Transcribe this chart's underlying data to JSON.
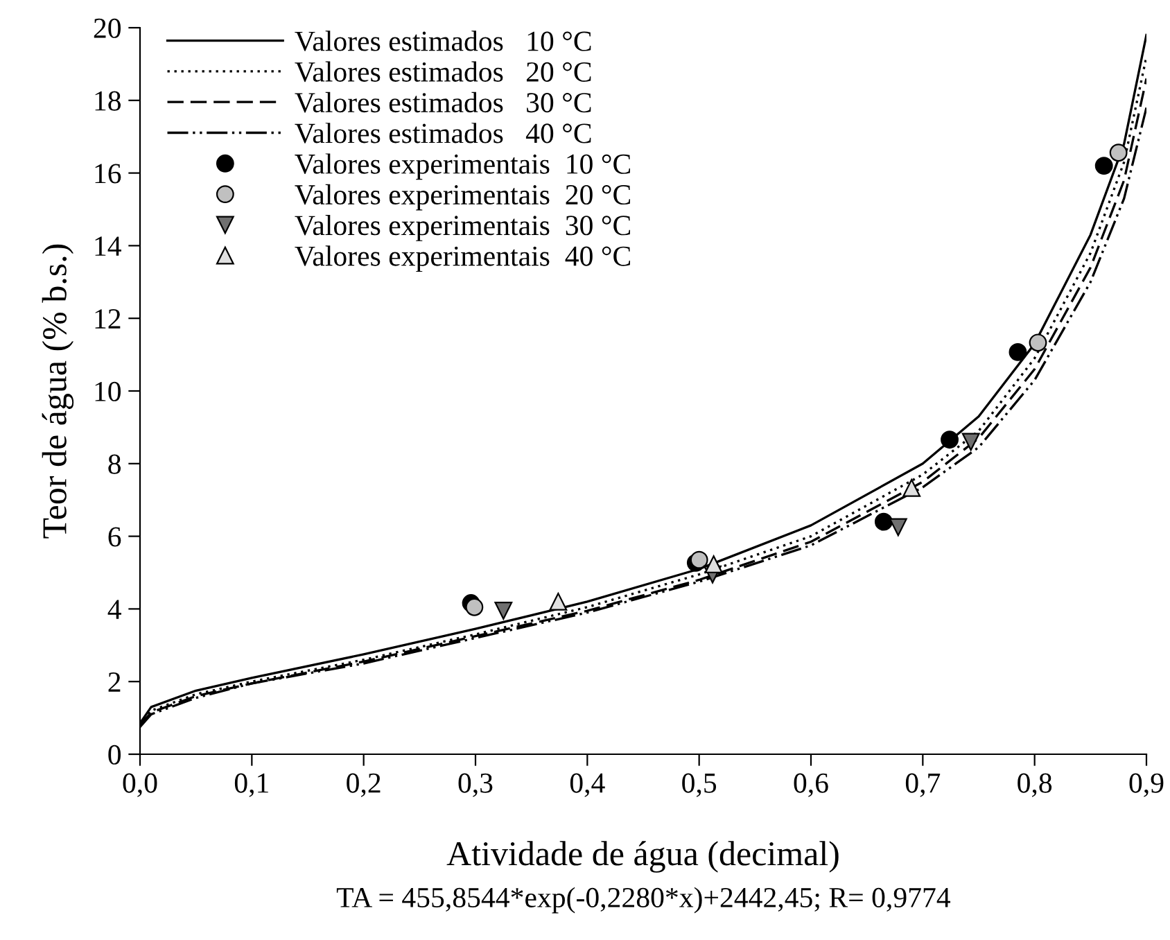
{
  "chart_data": {
    "type": "line",
    "xlabel": "Atividade de água (decimal)",
    "ylabel": "Teor de água (% b.s.)",
    "annotations": [
      "TA = 455,8544*exp(-0,2280*x)+2442,45; R= 0,9774"
    ],
    "xlim": [
      0,
      0.9
    ],
    "ylim": [
      0,
      20
    ],
    "xticks": [
      {
        "value": 0,
        "label": "0,0"
      },
      {
        "value": 0.1,
        "label": "0,1"
      },
      {
        "value": 0.2,
        "label": "0,2"
      },
      {
        "value": 0.3,
        "label": "0,3"
      },
      {
        "value": 0.4,
        "label": "0,4"
      },
      {
        "value": 0.5,
        "label": "0,5"
      },
      {
        "value": 0.6,
        "label": "0,6"
      },
      {
        "value": 0.7,
        "label": "0,7"
      },
      {
        "value": 0.8,
        "label": "0,8"
      },
      {
        "value": 0.9,
        "label": "0,9"
      }
    ],
    "yticks": [
      0,
      2,
      4,
      6,
      8,
      10,
      12,
      14,
      16,
      18,
      20
    ],
    "grid": false,
    "legend": "top left",
    "series": [
      {
        "name": "Valores estimados   10 °C",
        "line_style": "solid",
        "marker": "none",
        "color": "#000000",
        "x": [
          0,
          0.01,
          0.05,
          0.1,
          0.2,
          0.3,
          0.4,
          0.5,
          0.6,
          0.7,
          0.75,
          0.8,
          0.85,
          0.88,
          0.9
        ],
        "values": [
          0.85,
          1.3,
          1.75,
          2.1,
          2.75,
          3.45,
          4.2,
          5.1,
          6.3,
          8.0,
          9.3,
          11.3,
          14.3,
          16.8,
          19.8
        ]
      },
      {
        "name": "Valores estimados   20 °C",
        "line_style": "dotted",
        "marker": "none",
        "color": "#000000",
        "x": [
          0,
          0.01,
          0.05,
          0.1,
          0.2,
          0.3,
          0.4,
          0.5,
          0.6,
          0.7,
          0.75,
          0.8,
          0.85,
          0.88,
          0.9
        ],
        "values": [
          0.8,
          1.2,
          1.65,
          2.0,
          2.6,
          3.3,
          4.05,
          4.95,
          6.0,
          7.7,
          8.9,
          10.9,
          13.8,
          16.3,
          19.2
        ]
      },
      {
        "name": "Valores estimados   30 °C",
        "line_style": "dashed",
        "marker": "none",
        "color": "#000000",
        "x": [
          0,
          0.01,
          0.05,
          0.1,
          0.2,
          0.3,
          0.4,
          0.5,
          0.6,
          0.7,
          0.75,
          0.8,
          0.85,
          0.88,
          0.9
        ],
        "values": [
          0.8,
          1.15,
          1.6,
          1.95,
          2.55,
          3.25,
          3.95,
          4.8,
          5.85,
          7.5,
          8.7,
          10.6,
          13.4,
          15.8,
          18.6
        ]
      },
      {
        "name": "Valores estimados   40 °C",
        "line_style": "dashdotdot",
        "marker": "none",
        "color": "#000000",
        "x": [
          0,
          0.01,
          0.05,
          0.1,
          0.2,
          0.3,
          0.4,
          0.5,
          0.6,
          0.7,
          0.75,
          0.8,
          0.85,
          0.88,
          0.9
        ],
        "values": [
          0.75,
          1.1,
          1.55,
          1.95,
          2.5,
          3.2,
          3.9,
          4.75,
          5.75,
          7.35,
          8.45,
          10.3,
          13.0,
          15.3,
          17.8
        ]
      },
      {
        "name": "Valores experimentais  10 °C",
        "type": "scatter",
        "marker": "circle",
        "color": "#000000",
        "x": [
          0.296,
          0.497,
          0.665,
          0.724,
          0.785,
          0.862
        ],
        "values": [
          4.16,
          5.27,
          6.4,
          8.66,
          11.07,
          16.2
        ]
      },
      {
        "name": "Valores experimentais  20 °C",
        "type": "scatter",
        "marker": "circle",
        "color": "#c0c0c0",
        "x": [
          0.299,
          0.5,
          0.803,
          0.875
        ],
        "values": [
          4.05,
          5.35,
          11.33,
          16.56
        ]
      },
      {
        "name": "Valores experimentais  30 °C",
        "type": "scatter",
        "marker": "triangle_down",
        "color": "#707070",
        "x": [
          0.325,
          0.512,
          0.678,
          0.743
        ],
        "values": [
          3.95,
          4.95,
          6.25,
          8.6
        ]
      },
      {
        "name": "Valores experimentais  40 °C",
        "type": "scatter",
        "marker": "triangle",
        "color": "#e0e0e0",
        "x": [
          0.374,
          0.513,
          0.69
        ],
        "values": [
          4.2,
          5.23,
          7.33
        ]
      }
    ]
  }
}
